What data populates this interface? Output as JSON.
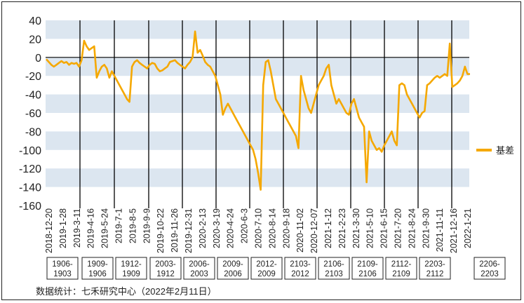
{
  "chart_data": {
    "type": "line",
    "title": "",
    "xlabel": "",
    "ylabel": "",
    "ylim": [
      -160,
      40
    ],
    "yticks": [
      40,
      20,
      0,
      -20,
      -40,
      -60,
      -80,
      -100,
      -120,
      -140,
      -160
    ],
    "grid": "alternating horizontal bands",
    "legend_position": "right",
    "colors": {
      "series": "#F5A800",
      "band": "#DCE6F0",
      "text": "#222222",
      "divider": "#000000"
    },
    "x_tick_labels": [
      "2018-12-20",
      "2019-1-28",
      "2019-3-11",
      "2019-4-16",
      "2019-5-24",
      "2019-7-1",
      "2019-8-5",
      "2019-9-9",
      "2019-10-22",
      "2019-11-26",
      "2019-12-31",
      "2020-2-13",
      "2020-3-19",
      "2020-4-24",
      "2020-6-3",
      "2020-7-10",
      "2020-8-14",
      "2020-9-18",
      "2020-11-02",
      "2020-12-07",
      "2021-1-12",
      "2021-2-23",
      "2021-3-30",
      "2021-5-10",
      "2021-6-15",
      "2021-7-20",
      "2021-8-24",
      "2021-9-30",
      "2021-11-11",
      "2021-12-16",
      "2022-1-21"
    ],
    "contract_boxes": [
      {
        "top": "1906-",
        "bottom": "1903"
      },
      {
        "top": "1909-",
        "bottom": "1906"
      },
      {
        "top": "1912-",
        "bottom": "1909"
      },
      {
        "top": "2003-",
        "bottom": "1912"
      },
      {
        "top": "2006-",
        "bottom": "2003"
      },
      {
        "top": "2009-",
        "bottom": "2006"
      },
      {
        "top": "2012-",
        "bottom": "2009"
      },
      {
        "top": "2103-",
        "bottom": "2012"
      },
      {
        "top": "2106-",
        "bottom": "2103"
      },
      {
        "top": "2109-",
        "bottom": "2106"
      },
      {
        "top": "2112-",
        "bottom": "2109"
      },
      {
        "top": "2203-",
        "bottom": "2112"
      },
      {
        "top": "2206-",
        "bottom": "2203"
      }
    ],
    "series": [
      {
        "name": "基差",
        "values": [
          -2,
          -5,
          -8,
          -10,
          -8,
          -6,
          -4,
          -6,
          -5,
          -8,
          -6,
          -7,
          -6,
          -10,
          -3,
          18,
          12,
          8,
          10,
          12,
          -22,
          -15,
          -10,
          -8,
          -12,
          -22,
          -15,
          -20,
          -25,
          -30,
          -35,
          -40,
          -45,
          -48,
          -10,
          -5,
          -3,
          -6,
          -8,
          -10,
          -12,
          -8,
          -6,
          -7,
          -12,
          -15,
          -14,
          -12,
          -10,
          -5,
          -4,
          -3,
          -6,
          -8,
          -10,
          -12,
          -8,
          -5,
          0,
          28,
          5,
          8,
          2,
          -5,
          -8,
          -10,
          -15,
          -20,
          -30,
          -40,
          -62,
          -55,
          -50,
          -55,
          -60,
          -65,
          -70,
          -75,
          -80,
          -85,
          -90,
          -95,
          -100,
          -110,
          -125,
          -143,
          -30,
          -5,
          -3,
          -15,
          -30,
          -45,
          -50,
          -55,
          -60,
          -65,
          -70,
          -75,
          -80,
          -85,
          -98,
          -20,
          -35,
          -45,
          -55,
          -60,
          -50,
          -40,
          -30,
          -25,
          -20,
          -12,
          -8,
          -30,
          -40,
          -50,
          -45,
          -50,
          -55,
          -60,
          -62,
          -50,
          -45,
          -55,
          -65,
          -70,
          -75,
          -135,
          -80,
          -90,
          -95,
          -100,
          -98,
          -102,
          -95,
          -90,
          -85,
          -80,
          -90,
          -95,
          -30,
          -28,
          -30,
          -40,
          -45,
          -50,
          -55,
          -60,
          -65,
          -60,
          -58,
          -30,
          -28,
          -25,
          -22,
          -20,
          -22,
          -20,
          -18,
          -20,
          15,
          -32,
          -30,
          -28,
          -25,
          -20,
          -10,
          -18,
          -18
        ]
      }
    ]
  },
  "legend": {
    "label": "基差"
  },
  "source": "数据统计：七禾研究中心（2022年2月11日）"
}
